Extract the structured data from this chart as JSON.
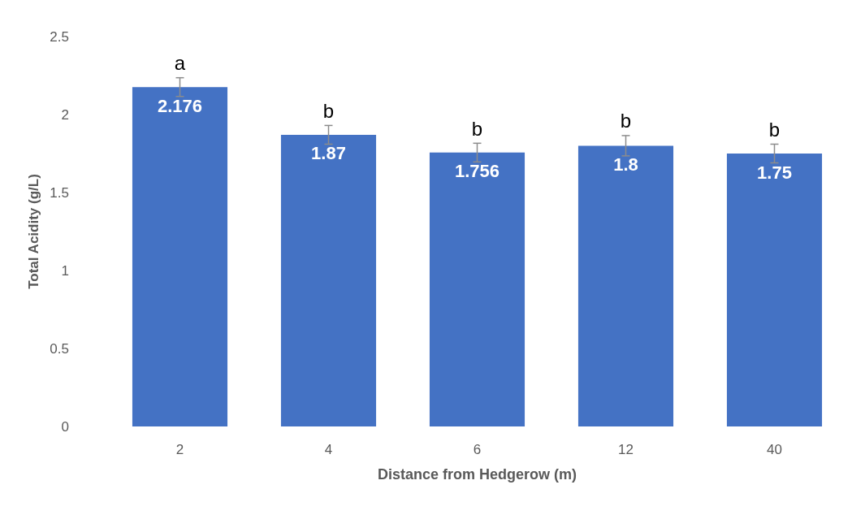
{
  "chart_data": {
    "type": "bar",
    "xlabel": "Distance from Hedgerow (m)",
    "ylabel": "Total Acidity (g/L)",
    "categories": [
      "2",
      "4",
      "6",
      "12",
      "40"
    ],
    "values": [
      2.176,
      1.87,
      1.756,
      1.8,
      1.75
    ],
    "errors": [
      0.06,
      0.06,
      0.06,
      0.065,
      0.06
    ],
    "color": "#4472c4",
    "ylim": [
      0,
      2.5
    ],
    "yticks": [
      0,
      0.5,
      1,
      1.5,
      2,
      2.5
    ],
    "grid": false,
    "data_labels": true,
    "annotations": [
      "a",
      "b",
      "b",
      "b",
      "b"
    ]
  }
}
